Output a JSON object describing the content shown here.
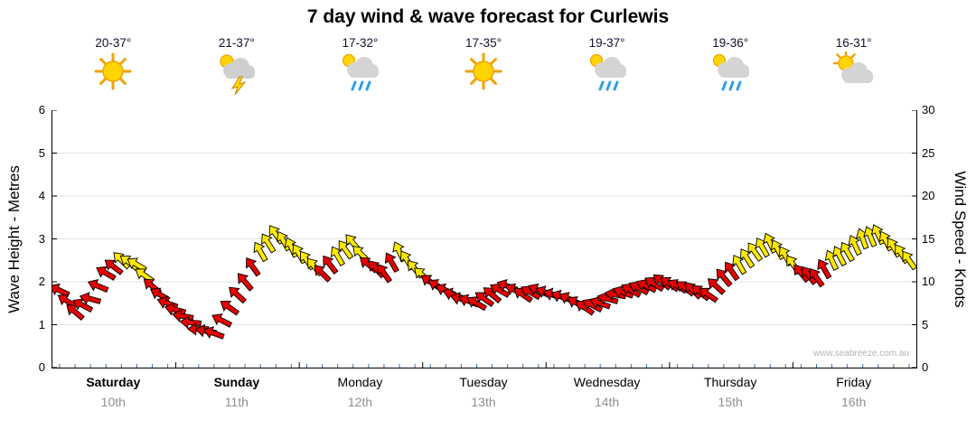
{
  "watermark": "www.seabreeze.com.au",
  "colors": {
    "red": "#e60000",
    "yellow": "#ffe800",
    "grid": "#e3e3e3",
    "minor_tick": "#3a6ea8",
    "arrow_outline": "#000000",
    "date_text": "#909090",
    "temp_text": "#111133"
  },
  "chart_data": {
    "type": "scatter",
    "title": "7 day wind & wave forecast for Curlewis",
    "left_axis": {
      "label": "Wave Height - Metres",
      "min": 0,
      "max": 6,
      "ticks": [
        0,
        1,
        2,
        3,
        4,
        5,
        6
      ]
    },
    "right_axis": {
      "label": "Wind Speed - Knots",
      "min": 0,
      "max": 30,
      "ticks": [
        0,
        5,
        10,
        15,
        20,
        25,
        30
      ]
    },
    "days": [
      {
        "name": "Saturday",
        "date": "10th",
        "temp": "20-37°",
        "icon": "sunny",
        "bold": true
      },
      {
        "name": "Sunday",
        "date": "11th",
        "temp": "21-37°",
        "icon": "storm",
        "bold": true
      },
      {
        "name": "Monday",
        "date": "12th",
        "temp": "17-32°",
        "icon": "rain",
        "bold": false
      },
      {
        "name": "Tuesday",
        "date": "13th",
        "temp": "17-35°",
        "icon": "sunny",
        "bold": false
      },
      {
        "name": "Wednesday",
        "date": "14th",
        "temp": "19-37°",
        "icon": "rain",
        "bold": false
      },
      {
        "name": "Thursday",
        "date": "15th",
        "temp": "19-36°",
        "icon": "rain",
        "bold": false
      },
      {
        "name": "Friday",
        "date": "16th",
        "temp": "16-31°",
        "icon": "partly",
        "bold": false
      }
    ],
    "wind_points_format": [
      "knots",
      "direction_deg",
      "color r=red y=yellow"
    ],
    "wind": [
      [
        9,
        205,
        "r"
      ],
      [
        6.5,
        220,
        "r"
      ],
      [
        8,
        195,
        "r"
      ],
      [
        11,
        210,
        "r"
      ],
      [
        12.5,
        225,
        "y"
      ],
      [
        12,
        210,
        "y"
      ],
      [
        9.5,
        220,
        "r"
      ],
      [
        7.5,
        200,
        "r"
      ],
      [
        6,
        190,
        "r"
      ],
      [
        4.5,
        180,
        "r"
      ],
      [
        4,
        200,
        "r"
      ],
      [
        7,
        215,
        "r"
      ],
      [
        10,
        230,
        "r"
      ],
      [
        13.5,
        240,
        "y"
      ],
      [
        15.5,
        235,
        "y"
      ],
      [
        14,
        245,
        "y"
      ],
      [
        12.5,
        235,
        "y"
      ],
      [
        11,
        225,
        "r"
      ],
      [
        13,
        240,
        "y"
      ],
      [
        14.5,
        230,
        "y"
      ],
      [
        12,
        220,
        "r"
      ],
      [
        11,
        235,
        "r"
      ],
      [
        13.5,
        245,
        "y"
      ],
      [
        11.5,
        230,
        "y"
      ],
      [
        10,
        215,
        "r"
      ],
      [
        9,
        205,
        "r"
      ],
      [
        8,
        195,
        "r"
      ],
      [
        7.5,
        210,
        "r"
      ],
      [
        8.5,
        220,
        "r"
      ],
      [
        9.5,
        200,
        "r"
      ],
      [
        8.5,
        215,
        "r"
      ],
      [
        9,
        205,
        "r"
      ],
      [
        8.5,
        195,
        "r"
      ],
      [
        8,
        205,
        "r"
      ],
      [
        7,
        215,
        "r"
      ],
      [
        7.5,
        200,
        "r"
      ],
      [
        8.5,
        190,
        "r"
      ],
      [
        9,
        210,
        "r"
      ],
      [
        9.5,
        205,
        "r"
      ],
      [
        10,
        220,
        "r"
      ],
      [
        9.5,
        210,
        "r"
      ],
      [
        9,
        225,
        "r"
      ],
      [
        8.5,
        215,
        "r"
      ],
      [
        10.5,
        230,
        "r"
      ],
      [
        12,
        240,
        "y"
      ],
      [
        13.5,
        235,
        "y"
      ],
      [
        14.5,
        245,
        "y"
      ],
      [
        13,
        240,
        "y"
      ],
      [
        11,
        230,
        "r"
      ],
      [
        10.5,
        235,
        "r"
      ],
      [
        12.5,
        245,
        "y"
      ],
      [
        13.5,
        240,
        "y"
      ],
      [
        15,
        250,
        "y"
      ],
      [
        15.5,
        245,
        "y"
      ],
      [
        14,
        240,
        "y"
      ],
      [
        12.5,
        235,
        "y"
      ]
    ]
  }
}
